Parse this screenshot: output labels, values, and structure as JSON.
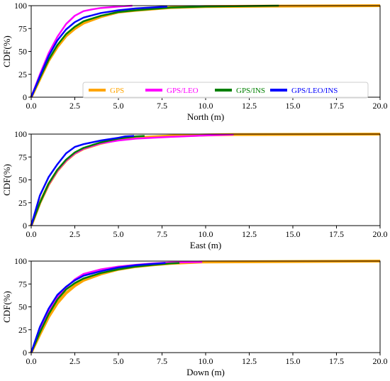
{
  "chart_data": [
    {
      "type": "line",
      "xlabel": "North (m)",
      "ylabel": "CDF(%)",
      "xlim": [
        0,
        20
      ],
      "ylim": [
        0,
        100
      ],
      "xticks": [
        "0.0",
        "2.5",
        "5.0",
        "7.5",
        "10.0",
        "12.5",
        "15.0",
        "17.5",
        "20.0"
      ],
      "yticks": [
        "0",
        "25",
        "50",
        "75",
        "100"
      ],
      "grid": false,
      "legend": "bottom-center",
      "series": [
        {
          "name": "GPS",
          "color": "#FFA500",
          "x": [
            0,
            0.5,
            1,
            1.5,
            2,
            2.5,
            3,
            4,
            5,
            6,
            8,
            10,
            14,
            20
          ],
          "y": [
            0,
            20,
            40,
            55,
            67,
            75,
            81,
            88,
            93,
            95,
            98,
            99,
            99.5,
            100
          ]
        },
        {
          "name": "GPS/LEO",
          "color": "#FF00FF",
          "x": [
            0,
            0.5,
            1,
            1.5,
            2,
            2.5,
            3,
            3.5,
            4,
            5,
            5.8
          ],
          "y": [
            0,
            25,
            48,
            66,
            80,
            89,
            94,
            96,
            97.5,
            99,
            100
          ]
        },
        {
          "name": "GPS/INS",
          "color": "#008000",
          "x": [
            0,
            0.5,
            1,
            1.5,
            2,
            2.5,
            3,
            4,
            5,
            6,
            8,
            10,
            14.2
          ],
          "y": [
            0,
            21,
            41,
            57,
            69,
            77,
            83,
            89,
            93,
            95,
            98,
            99,
            100
          ]
        },
        {
          "name": "GPS/LEO/INS",
          "color": "#0000FF",
          "x": [
            0,
            0.5,
            1,
            1.5,
            2,
            2.5,
            3,
            4,
            5,
            6,
            7.8
          ],
          "y": [
            0,
            23,
            45,
            62,
            74,
            82,
            87,
            92,
            95,
            97,
            99
          ]
        }
      ]
    },
    {
      "type": "line",
      "xlabel": "East (m)",
      "ylabel": "CDF(%)",
      "xlim": [
        0,
        20
      ],
      "ylim": [
        0,
        100
      ],
      "xticks": [
        "0.0",
        "2.5",
        "5.0",
        "7.5",
        "10.0",
        "12.5",
        "15.0",
        "17.5",
        "20.0"
      ],
      "yticks": [
        "0",
        "25",
        "50",
        "75",
        "100"
      ],
      "grid": false,
      "series": [
        {
          "name": "GPS",
          "color": "#FFA500",
          "x": [
            0,
            0.5,
            1,
            1.5,
            2,
            2.5,
            3,
            4,
            5,
            6,
            8,
            10,
            11.6,
            20
          ],
          "y": [
            0,
            25,
            45,
            60,
            71,
            79,
            84,
            90,
            94,
            96,
            98,
            99,
            99.5,
            100
          ]
        },
        {
          "name": "GPS/LEO",
          "color": "#FF00FF",
          "x": [
            0,
            0.5,
            1,
            1.5,
            2,
            2.5,
            3,
            4,
            5,
            6,
            8,
            10,
            11.6
          ],
          "y": [
            0,
            25,
            45,
            60,
            71,
            79,
            84,
            90,
            93,
            95,
            97,
            98.5,
            99.5
          ]
        },
        {
          "name": "GPS/INS",
          "color": "#008000",
          "x": [
            0,
            0.5,
            1,
            1.5,
            2,
            2.5,
            3,
            4,
            5,
            6,
            6.5
          ],
          "y": [
            0,
            25,
            46,
            61,
            72,
            80,
            85,
            91,
            95,
            97.5,
            98
          ]
        },
        {
          "name": "GPS/LEO/INS",
          "color": "#0000FF",
          "x": [
            0,
            0.5,
            1,
            1.5,
            2,
            2.5,
            3,
            4,
            5,
            5.4,
            5.9
          ],
          "y": [
            0,
            33,
            53,
            67,
            79,
            86,
            89,
            93,
            96,
            97.5,
            98
          ]
        }
      ]
    },
    {
      "type": "line",
      "xlabel": "Down (m)",
      "ylabel": "CDF(%)",
      "xlim": [
        0,
        20
      ],
      "ylim": [
        0,
        100
      ],
      "xticks": [
        "0.0",
        "2.5",
        "5.0",
        "7.5",
        "10.0",
        "12.5",
        "15.0",
        "17.5",
        "20.0"
      ],
      "yticks": [
        "0",
        "25",
        "50",
        "75",
        "100"
      ],
      "grid": false,
      "series": [
        {
          "name": "GPS",
          "color": "#FFA500",
          "x": [
            0,
            0.5,
            1,
            1.5,
            2,
            2.5,
            3,
            4,
            5,
            6,
            7,
            8,
            9.8,
            20
          ],
          "y": [
            0,
            20,
            39,
            54,
            65,
            73,
            79,
            86,
            91,
            94,
            96,
            97.5,
            99,
            100
          ]
        },
        {
          "name": "GPS/LEO",
          "color": "#FF00FF",
          "x": [
            0,
            0.5,
            1,
            1.5,
            2,
            2.5,
            3,
            4,
            5,
            6,
            7,
            8,
            9.8
          ],
          "y": [
            0,
            24,
            44,
            60,
            71,
            80,
            86,
            91,
            94,
            96,
            97.5,
            98.5,
            99
          ]
        },
        {
          "name": "GPS/INS",
          "color": "#008000",
          "x": [
            0,
            0.5,
            1,
            1.5,
            2,
            2.5,
            3,
            4,
            5,
            6,
            7,
            8,
            8.5
          ],
          "y": [
            0,
            22,
            42,
            58,
            69,
            76,
            81,
            87,
            91,
            94,
            96,
            97.5,
            98
          ]
        },
        {
          "name": "GPS/LEO/INS",
          "color": "#0000FF",
          "x": [
            0,
            0.5,
            1,
            1.5,
            2,
            2.5,
            3,
            4,
            5,
            6,
            7,
            7.7
          ],
          "y": [
            0,
            28,
            48,
            63,
            72,
            79,
            84,
            89,
            93,
            95.5,
            97,
            98
          ]
        }
      ]
    }
  ]
}
